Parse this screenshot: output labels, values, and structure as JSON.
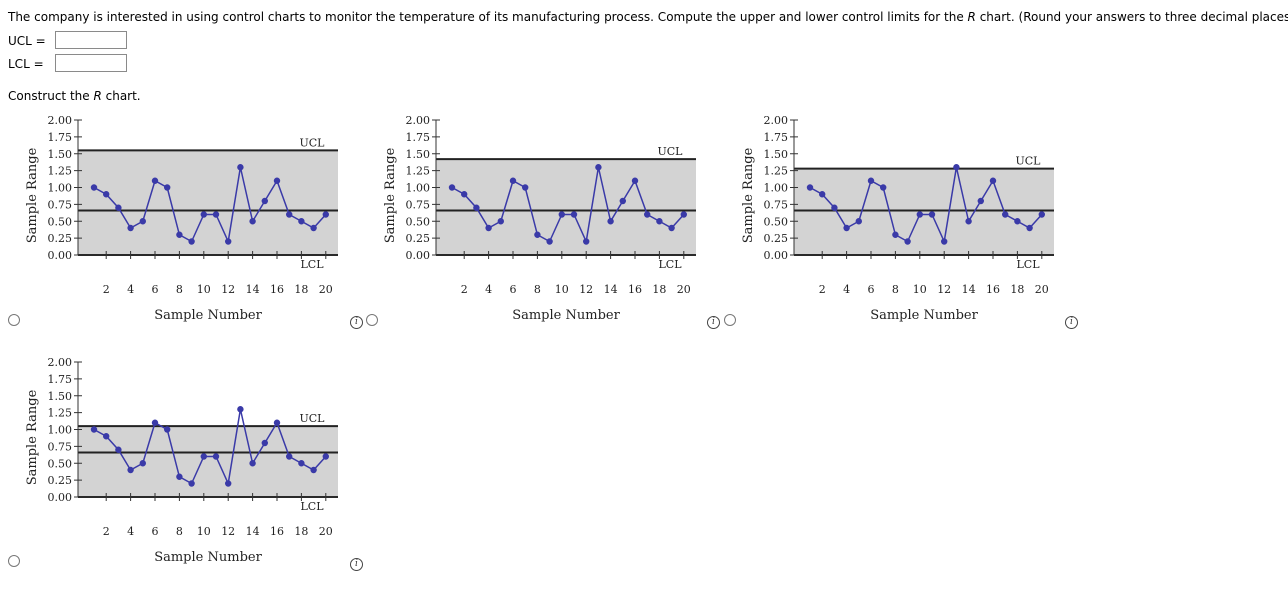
{
  "question": {
    "text": "The company is interested in using control charts to monitor the temperature of its manufacturing process. Compute the upper and lower control limits for the R chart. (Round your answers to three decimal places.)",
    "parts": [
      "The company is interested in using control charts to monitor the temperature of its manufacturing process. Compute the upper and lower control limits for the ",
      "R",
      " chart. (Round your answers to three decimal places.)"
    ]
  },
  "answers": {
    "ucl_label": "UCL  =",
    "lcl_label": "LCL  =",
    "ucl_value": "",
    "lcl_value": ""
  },
  "construct": {
    "parts": [
      "Construct the ",
      "R",
      " chart."
    ]
  },
  "info_icon_glyph": "i",
  "chart_data": [
    {
      "type": "line",
      "xlabel": "Sample Number",
      "ylabel": "Sample Range",
      "x": [
        1,
        2,
        3,
        4,
        5,
        6,
        7,
        8,
        9,
        10,
        11,
        12,
        13,
        14,
        15,
        16,
        17,
        18,
        19,
        20
      ],
      "values": [
        1.0,
        0.9,
        0.7,
        0.4,
        0.5,
        1.1,
        1.0,
        0.3,
        0.2,
        0.6,
        0.6,
        0.2,
        1.3,
        0.5,
        0.8,
        1.1,
        0.6,
        0.5,
        0.4,
        0.6
      ],
      "xticks": [
        2,
        4,
        6,
        8,
        10,
        12,
        14,
        16,
        18,
        20
      ],
      "yticks": [
        "0.00",
        "0.25",
        "0.50",
        "0.75",
        "1.00",
        "1.25",
        "1.50",
        "1.75",
        "2.00"
      ],
      "ylim": [
        0,
        2
      ],
      "ucl": 1.55,
      "center": 0.66,
      "lcl": 0.0,
      "ucl_label": "UCL",
      "lcl_label": "LCL",
      "colors": {
        "line": "#3a3aa8",
        "band": "#d3d3d3",
        "limit": "#222222"
      }
    },
    {
      "type": "line",
      "xlabel": "Sample Number",
      "ylabel": "Sample Range",
      "x": [
        1,
        2,
        3,
        4,
        5,
        6,
        7,
        8,
        9,
        10,
        11,
        12,
        13,
        14,
        15,
        16,
        17,
        18,
        19,
        20
      ],
      "values": [
        1.0,
        0.9,
        0.7,
        0.4,
        0.5,
        1.1,
        1.0,
        0.3,
        0.2,
        0.6,
        0.6,
        0.2,
        1.3,
        0.5,
        0.8,
        1.1,
        0.6,
        0.5,
        0.4,
        0.6
      ],
      "xticks": [
        2,
        4,
        6,
        8,
        10,
        12,
        14,
        16,
        18,
        20
      ],
      "yticks": [
        "0.00",
        "0.25",
        "0.50",
        "0.75",
        "1.00",
        "1.25",
        "1.50",
        "1.75",
        "2.00"
      ],
      "ylim": [
        0,
        2
      ],
      "ucl": 1.42,
      "center": 0.66,
      "lcl": 0.0,
      "ucl_label": "UCL",
      "lcl_label": "LCL",
      "colors": {
        "line": "#3a3aa8",
        "band": "#d3d3d3",
        "limit": "#222222"
      }
    },
    {
      "type": "line",
      "xlabel": "Sample Number",
      "ylabel": "Sample Range",
      "x": [
        1,
        2,
        3,
        4,
        5,
        6,
        7,
        8,
        9,
        10,
        11,
        12,
        13,
        14,
        15,
        16,
        17,
        18,
        19,
        20
      ],
      "values": [
        1.0,
        0.9,
        0.7,
        0.4,
        0.5,
        1.1,
        1.0,
        0.3,
        0.2,
        0.6,
        0.6,
        0.2,
        1.3,
        0.5,
        0.8,
        1.1,
        0.6,
        0.5,
        0.4,
        0.6
      ],
      "xticks": [
        2,
        4,
        6,
        8,
        10,
        12,
        14,
        16,
        18,
        20
      ],
      "yticks": [
        "0.00",
        "0.25",
        "0.50",
        "0.75",
        "1.00",
        "1.25",
        "1.50",
        "1.75",
        "2.00"
      ],
      "ylim": [
        0,
        2
      ],
      "ucl": 1.28,
      "center": 0.66,
      "lcl": 0.0,
      "ucl_label": "UCL",
      "lcl_label": "LCL",
      "colors": {
        "line": "#3a3aa8",
        "band": "#d3d3d3",
        "limit": "#222222"
      }
    },
    {
      "type": "line",
      "xlabel": "Sample Number",
      "ylabel": "Sample Range",
      "x": [
        1,
        2,
        3,
        4,
        5,
        6,
        7,
        8,
        9,
        10,
        11,
        12,
        13,
        14,
        15,
        16,
        17,
        18,
        19,
        20
      ],
      "values": [
        1.0,
        0.9,
        0.7,
        0.4,
        0.5,
        1.1,
        1.0,
        0.3,
        0.2,
        0.6,
        0.6,
        0.2,
        1.3,
        0.5,
        0.8,
        1.1,
        0.6,
        0.5,
        0.4,
        0.6
      ],
      "xticks": [
        2,
        4,
        6,
        8,
        10,
        12,
        14,
        16,
        18,
        20
      ],
      "yticks": [
        "0.00",
        "0.25",
        "0.50",
        "0.75",
        "1.00",
        "1.25",
        "1.50",
        "1.75",
        "2.00"
      ],
      "ylim": [
        0,
        2
      ],
      "ucl": 1.05,
      "center": 0.66,
      "lcl": 0.0,
      "ucl_label": "UCL",
      "lcl_label": "LCL",
      "colors": {
        "line": "#3a3aa8",
        "band": "#d3d3d3",
        "limit": "#222222"
      }
    }
  ]
}
